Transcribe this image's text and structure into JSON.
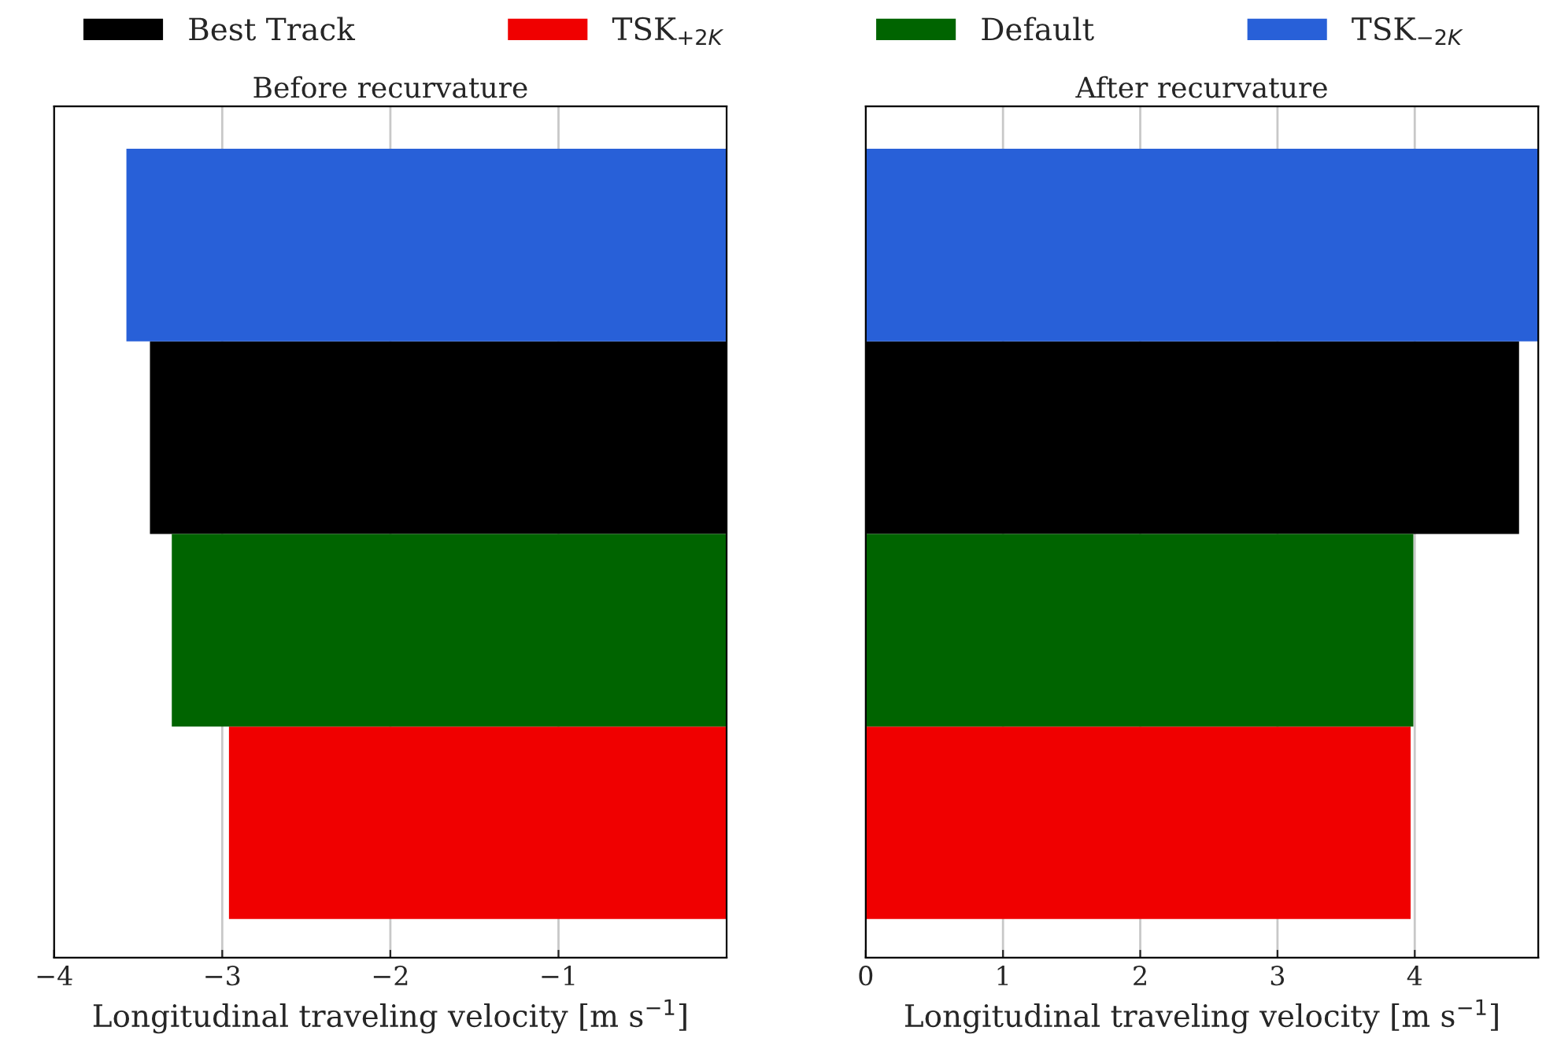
{
  "chart_data": [
    {
      "type": "bar",
      "orientation": "horizontal",
      "title": "Before recurvature",
      "xlabel": "Longitudinal traveling velocity [m s$^{−1}$]",
      "categories": [
        null,
        null,
        null,
        null
      ],
      "series": [
        {
          "name": "Best Track",
          "color": "#000000",
          "values": [
            null,
            -3.43,
            null,
            null
          ]
        },
        {
          "name": "TSK$_{+2K}$",
          "color": "#f00000",
          "values": [
            null,
            null,
            null,
            -2.96
          ]
        },
        {
          "name": "Default",
          "color": "#006400",
          "values": [
            null,
            null,
            -3.3,
            null
          ]
        },
        {
          "name": "TSK$_{−2K}$",
          "color": "#2860d8",
          "values": [
            -3.57,
            null,
            null,
            null
          ]
        }
      ],
      "xlim": [
        -4,
        0
      ],
      "xticks": [
        {
          "value": -4,
          "label": "−4"
        },
        {
          "value": -3,
          "label": "−3"
        },
        {
          "value": -2,
          "label": "−2"
        },
        {
          "value": -1,
          "label": "−1"
        }
      ],
      "grid": "x",
      "legend": "top"
    },
    {
      "type": "bar",
      "orientation": "horizontal",
      "title": "After recurvature",
      "xlabel": "Longitudinal traveling velocity [m s$^{−1}$]",
      "categories": [
        null,
        null,
        null,
        null
      ],
      "series": [
        {
          "color": "#000000",
          "values": [
            null,
            4.76,
            null,
            null
          ]
        },
        {
          "color": "#f00000",
          "values": [
            null,
            null,
            null,
            3.97
          ]
        },
        {
          "color": "#006400",
          "values": [
            null,
            null,
            3.99,
            null
          ]
        },
        {
          "color": "#2860d8",
          "values": [
            4.9,
            null,
            null,
            null
          ]
        }
      ],
      "xlim": [
        0,
        4.9
      ],
      "xticks": [
        0,
        1,
        2,
        3,
        4
      ],
      "grid": "x"
    }
  ]
}
